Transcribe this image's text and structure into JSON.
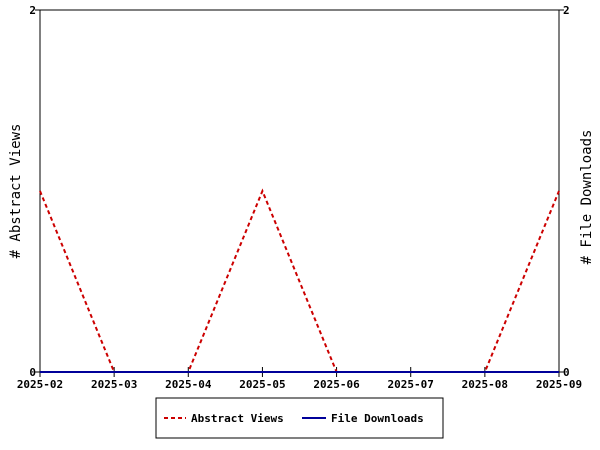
{
  "chart_data": {
    "type": "line",
    "x": [
      "2025-02",
      "2025-03",
      "2025-04",
      "2025-05",
      "2025-06",
      "2025-07",
      "2025-08",
      "2025-09"
    ],
    "x_ticks": [
      "2025-02",
      "2025-03",
      "2025-04",
      "2025-05",
      "2025-06",
      "2025-07",
      "2025-08",
      "2025-09"
    ],
    "ylabel_left": "# Abstract Views",
    "ylabel_right": "# File Downloads",
    "ylim_left": [
      0,
      2
    ],
    "ylim_right": [
      0,
      2
    ],
    "y_ticks_left": [
      "0",
      "2"
    ],
    "y_ticks_right": [
      "0",
      "2"
    ],
    "grid": false,
    "legend_position": "bottom-center",
    "series": [
      {
        "name": "Abstract Views",
        "axis": "left",
        "color": "#cc0000",
        "style": "dashed",
        "values": [
          1,
          0,
          0,
          1,
          0,
          0,
          0,
          1
        ]
      },
      {
        "name": "File Downloads",
        "axis": "right",
        "color": "#000099",
        "style": "solid",
        "values": [
          0,
          0,
          0,
          0,
          0,
          0,
          0,
          0
        ]
      }
    ]
  }
}
